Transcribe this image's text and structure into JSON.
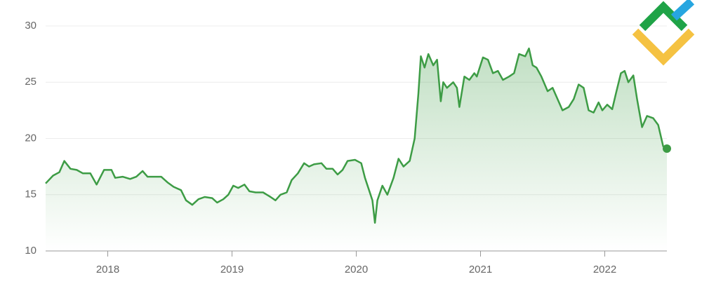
{
  "chart_data": {
    "type": "line",
    "color": "#3d9c45",
    "grid": true,
    "xlim": [
      2017.5,
      2022.5
    ],
    "xticks": [
      2018,
      2019,
      2020,
      2021,
      2022
    ],
    "ylim": [
      10,
      30
    ],
    "yticks": [
      10,
      15,
      20,
      25,
      30
    ],
    "x": [
      2017.5,
      2017.56,
      2017.61,
      2017.65,
      2017.7,
      2017.75,
      2017.8,
      2017.86,
      2017.91,
      2017.97,
      2018.03,
      2018.06,
      2018.12,
      2018.18,
      2018.23,
      2018.28,
      2018.32,
      2018.38,
      2018.43,
      2018.48,
      2018.53,
      2018.59,
      2018.63,
      2018.68,
      2018.73,
      2018.78,
      2018.84,
      2018.88,
      2018.93,
      2018.97,
      2019.01,
      2019.05,
      2019.1,
      2019.14,
      2019.19,
      2019.25,
      2019.31,
      2019.35,
      2019.39,
      2019.44,
      2019.48,
      2019.53,
      2019.58,
      2019.62,
      2019.66,
      2019.72,
      2019.76,
      2019.81,
      2019.85,
      2019.89,
      2019.93,
      2019.99,
      2020.04,
      2020.07,
      2020.1,
      2020.13,
      2020.15,
      2020.17,
      2020.21,
      2020.25,
      2020.3,
      2020.34,
      2020.38,
      2020.43,
      2020.47,
      2020.5,
      2020.52,
      2020.55,
      2020.58,
      2020.62,
      2020.65,
      2020.68,
      2020.7,
      2020.73,
      2020.78,
      2020.81,
      2020.83,
      2020.87,
      2020.91,
      2020.95,
      2020.97,
      2021.02,
      2021.06,
      2021.1,
      2021.14,
      2021.18,
      2021.23,
      2021.27,
      2021.31,
      2021.36,
      2021.39,
      2021.42,
      2021.45,
      2021.49,
      2021.54,
      2021.58,
      2021.62,
      2021.66,
      2021.71,
      2021.75,
      2021.79,
      2021.83,
      2021.87,
      2021.91,
      2021.95,
      2021.98,
      2022.02,
      2022.06,
      2022.09,
      2022.13,
      2022.16,
      2022.19,
      2022.23,
      2022.26,
      2022.3,
      2022.34,
      2022.39,
      2022.43,
      2022.47,
      2022.5
    ],
    "values": [
      16.0,
      16.7,
      17.0,
      18.0,
      17.3,
      17.2,
      16.9,
      16.9,
      15.9,
      17.2,
      17.2,
      16.5,
      16.6,
      16.4,
      16.6,
      17.1,
      16.6,
      16.6,
      16.6,
      16.1,
      15.7,
      15.4,
      14.5,
      14.1,
      14.6,
      14.8,
      14.7,
      14.3,
      14.6,
      15.0,
      15.8,
      15.6,
      15.9,
      15.3,
      15.2,
      15.2,
      14.8,
      14.5,
      15.0,
      15.2,
      16.3,
      16.9,
      17.8,
      17.5,
      17.7,
      17.8,
      17.3,
      17.3,
      16.8,
      17.2,
      18.0,
      18.1,
      17.8,
      16.5,
      15.5,
      14.5,
      12.5,
      14.5,
      15.8,
      15.0,
      16.5,
      18.2,
      17.5,
      18.0,
      20.0,
      24.0,
      27.3,
      26.3,
      27.5,
      26.5,
      27.0,
      23.3,
      25.0,
      24.5,
      25.0,
      24.5,
      22.8,
      25.5,
      25.2,
      25.8,
      25.5,
      27.2,
      27.0,
      25.8,
      26.0,
      25.2,
      25.5,
      25.8,
      27.5,
      27.3,
      28.0,
      26.5,
      26.3,
      25.5,
      24.2,
      24.5,
      23.5,
      22.5,
      22.8,
      23.5,
      24.8,
      24.5,
      22.5,
      22.3,
      23.2,
      22.5,
      23.0,
      22.6,
      24.0,
      25.8,
      26.0,
      25.0,
      25.6,
      23.5,
      21.0,
      22.0,
      21.8,
      21.2,
      19.3,
      19.1
    ]
  }
}
